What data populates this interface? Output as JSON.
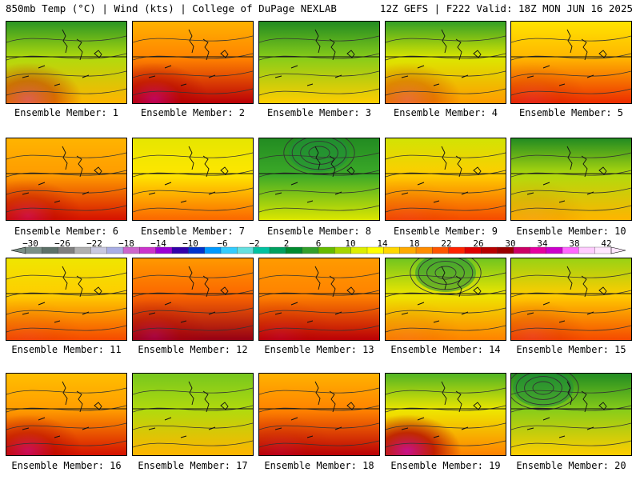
{
  "header": {
    "left_title": "850mb Temp (°C) | Wind (kts) | College of DuPage NEXLAB",
    "right_title": "12Z GEFS | F222 Valid: 18Z MON JUN 16 2025"
  },
  "panels": [
    {
      "label": "Ensemble Member: 1",
      "warmth": 0.35,
      "cool_north": 0.55,
      "low_center": null,
      "extreme_hot": 0.3
    },
    {
      "label": "Ensemble Member: 2",
      "warmth": 0.7,
      "cool_north": 0.1,
      "low_center": null,
      "extreme_hot": 0.35
    },
    {
      "label": "Ensemble Member: 3",
      "warmth": 0.3,
      "cool_north": 0.7,
      "low_center": null,
      "extreme_hot": 0.0
    },
    {
      "label": "Ensemble Member: 4",
      "warmth": 0.4,
      "cool_north": 0.55,
      "low_center": null,
      "extreme_hot": 0.2
    },
    {
      "label": "Ensemble Member: 5",
      "warmth": 0.6,
      "cool_north": 0.1,
      "low_center": null,
      "extreme_hot": 0.1
    },
    {
      "label": "Ensemble Member: 6",
      "warmth": 0.65,
      "cool_north": 0.0,
      "low_center": null,
      "extreme_hot": 0.25
    },
    {
      "label": "Ensemble Member: 7",
      "warmth": 0.5,
      "cool_north": 0.05,
      "low_center": null,
      "extreme_hot": 0.0
    },
    {
      "label": "Ensemble Member: 8",
      "warmth": 0.15,
      "cool_north": 0.9,
      "low_center": "upper-center",
      "extreme_hot": 0.0
    },
    {
      "label": "Ensemble Member: 9",
      "warmth": 0.55,
      "cool_north": 0.25,
      "low_center": null,
      "extreme_hot": 0.05
    },
    {
      "label": "Ensemble Member: 10",
      "warmth": 0.35,
      "cool_north": 0.75,
      "low_center": null,
      "extreme_hot": 0.05
    },
    {
      "label": "Ensemble Member: 11",
      "warmth": 0.55,
      "cool_north": 0.1,
      "low_center": null,
      "extreme_hot": 0.05
    },
    {
      "label": "Ensemble Member: 12",
      "warmth": 0.75,
      "cool_north": 0.1,
      "low_center": null,
      "extreme_hot": 0.2
    },
    {
      "label": "Ensemble Member: 13",
      "warmth": 0.7,
      "cool_north": 0.0,
      "low_center": null,
      "extreme_hot": 0.1
    },
    {
      "label": "Ensemble Member: 14",
      "warmth": 0.45,
      "cool_north": 0.3,
      "low_center": "upper-center",
      "extreme_hot": 0.05
    },
    {
      "label": "Ensemble Member: 15",
      "warmth": 0.55,
      "cool_north": 0.4,
      "low_center": null,
      "extreme_hot": 0.1
    },
    {
      "label": "Ensemble Member: 16",
      "warmth": 0.65,
      "cool_north": 0.05,
      "low_center": null,
      "extreme_hot": 0.35
    },
    {
      "label": "Ensemble Member: 17",
      "warmth": 0.35,
      "cool_north": 0.05,
      "low_center": null,
      "extreme_hot": 0.0
    },
    {
      "label": "Ensemble Member: 18",
      "warmth": 0.7,
      "cool_north": 0.1,
      "low_center": null,
      "extreme_hot": 0.1
    },
    {
      "label": "Ensemble Member: 19",
      "warmth": 0.45,
      "cool_north": 0.45,
      "low_center": null,
      "extreme_hot": 0.55
    },
    {
      "label": "Ensemble Member: 20",
      "warmth": 0.3,
      "cool_north": 0.55,
      "low_center": "upper-left",
      "extreme_hot": 0.0
    }
  ],
  "colorbar": {
    "units": "°C",
    "labels": [
      "−30",
      "−26",
      "−22",
      "−18",
      "−14",
      "−10",
      "−6",
      "−2",
      "2",
      "6",
      "10",
      "14",
      "18",
      "22",
      "26",
      "30",
      "34",
      "38",
      "42"
    ],
    "colors": [
      "#7a8f86",
      "#5d7168",
      "#7f7f7f",
      "#b0b0b0",
      "#c8c8e0",
      "#a9aee5",
      "#cc66cc",
      "#cc33cc",
      "#9b00d5",
      "#3300aa",
      "#0033cc",
      "#0099ff",
      "#33ccff",
      "#66e0e0",
      "#00c2a0",
      "#00a060",
      "#008a2e",
      "#33a02c",
      "#66bb00",
      "#a6d600",
      "#ddee00",
      "#ffff00",
      "#ffd700",
      "#ffaa00",
      "#ff8c00",
      "#ff5500",
      "#ff2200",
      "#e00000",
      "#b80000",
      "#990000",
      "#cc0066",
      "#e600a0",
      "#cc00cc",
      "#ff66ff",
      "#ffccff",
      "#ffe6ff"
    ]
  }
}
